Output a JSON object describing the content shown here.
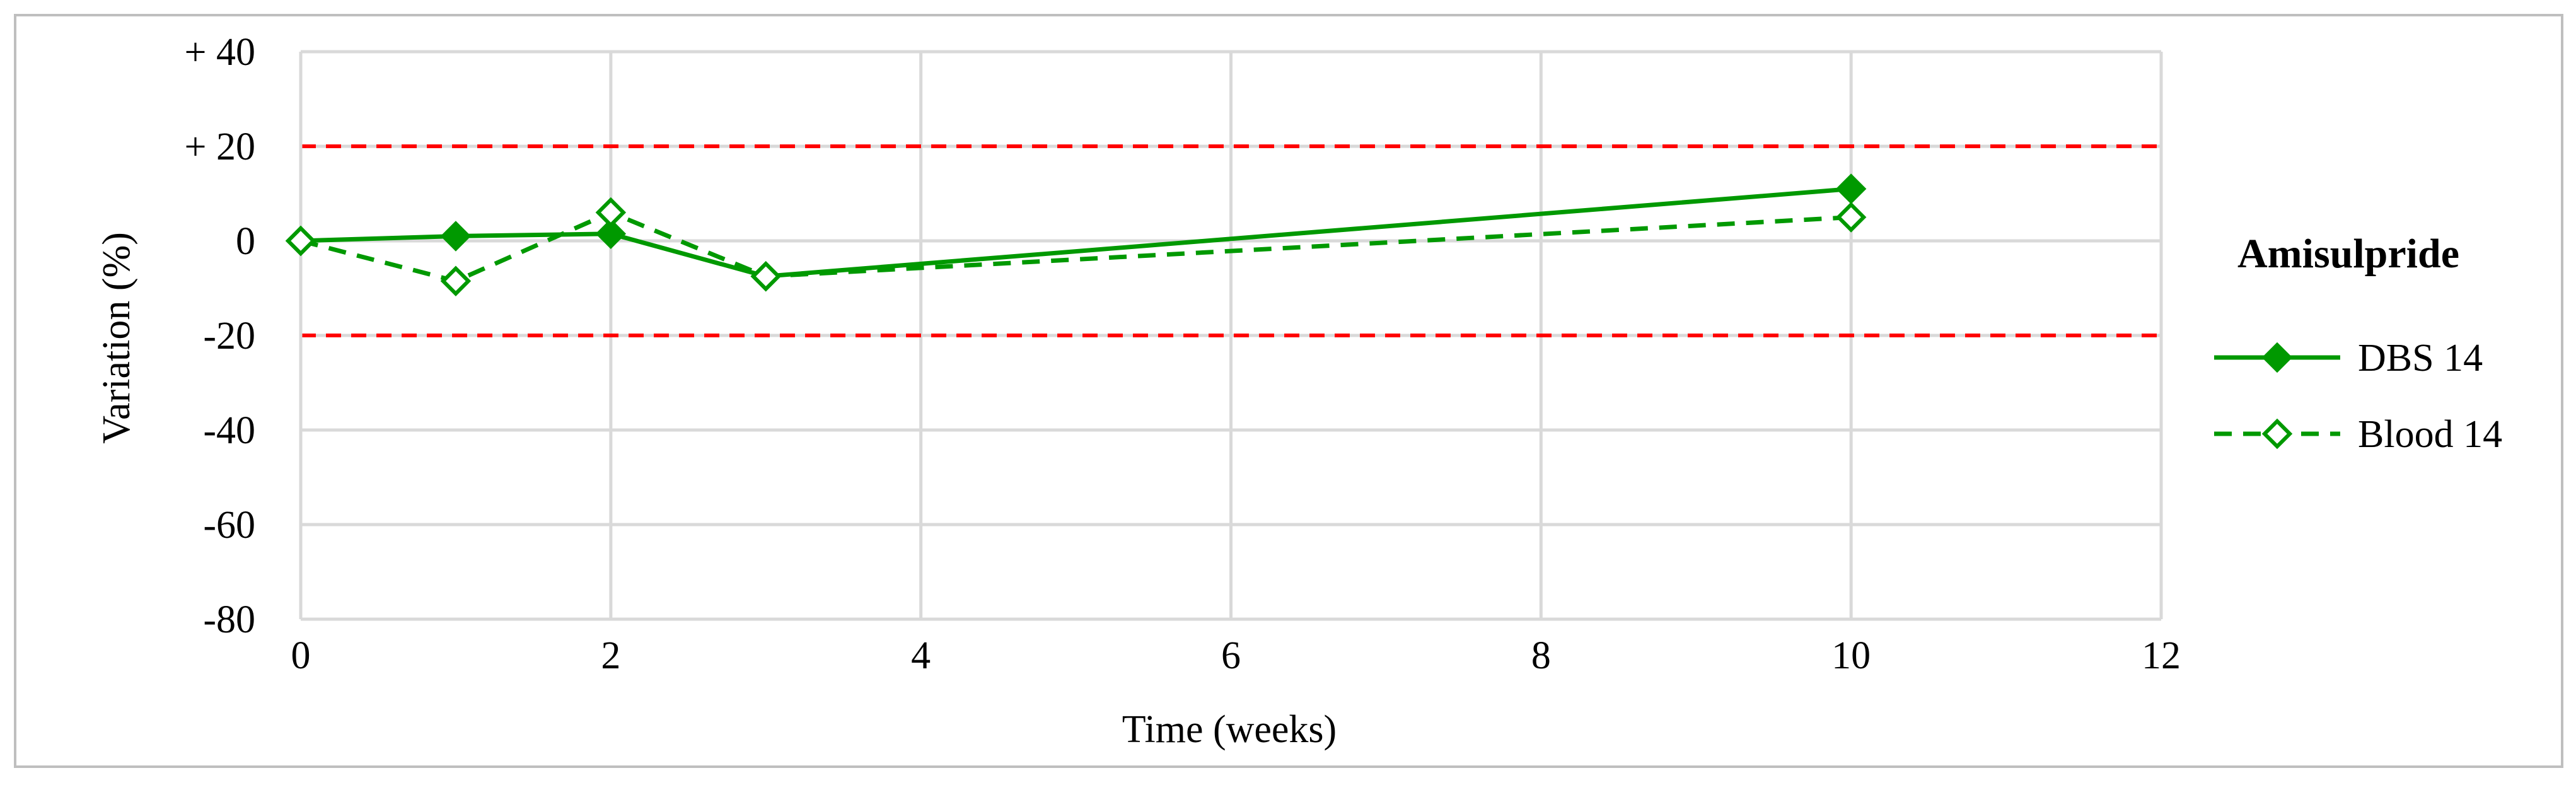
{
  "chart_data": {
    "type": "line",
    "title": "",
    "xlabel": "Time (weeks)",
    "ylabel": "Variation (%)",
    "xlim": [
      0,
      12
    ],
    "ylim": [
      -80,
      40
    ],
    "x_ticks": [
      0,
      2,
      4,
      6,
      8,
      10,
      12
    ],
    "x_tick_labels": [
      "0",
      "2",
      "4",
      "6",
      "8",
      "10",
      "12"
    ],
    "y_ticks": [
      40,
      20,
      0,
      -20,
      -40,
      -60,
      -80
    ],
    "y_tick_labels": [
      "+ 40",
      "+ 20",
      "0",
      "-20",
      "-40",
      "-60",
      "-80"
    ],
    "grid": true,
    "legend": {
      "title": "Amisulpride",
      "placement": "right"
    },
    "reference_lines": [
      {
        "y": 20,
        "style": "dashed",
        "color": "#ff0000"
      },
      {
        "y": -20,
        "style": "dashed",
        "color": "#ff0000"
      }
    ],
    "series": [
      {
        "name": "DBS 14",
        "x": [
          0,
          1,
          2,
          3,
          10
        ],
        "values": [
          0,
          1,
          1.5,
          -7.5,
          11
        ],
        "color": "#009900",
        "line_style": "solid",
        "marker": "diamond-filled"
      },
      {
        "name": "Blood 14",
        "x": [
          0,
          1,
          2,
          3,
          10
        ],
        "values": [
          0,
          -8.5,
          6,
          -7.5,
          5
        ],
        "color": "#009900",
        "line_style": "dashed",
        "marker": "diamond-open"
      }
    ]
  },
  "colors": {
    "frame": "#bfbfbf",
    "grid": "#d9d9d9",
    "reference": "#ff0000",
    "series": "#009900"
  }
}
